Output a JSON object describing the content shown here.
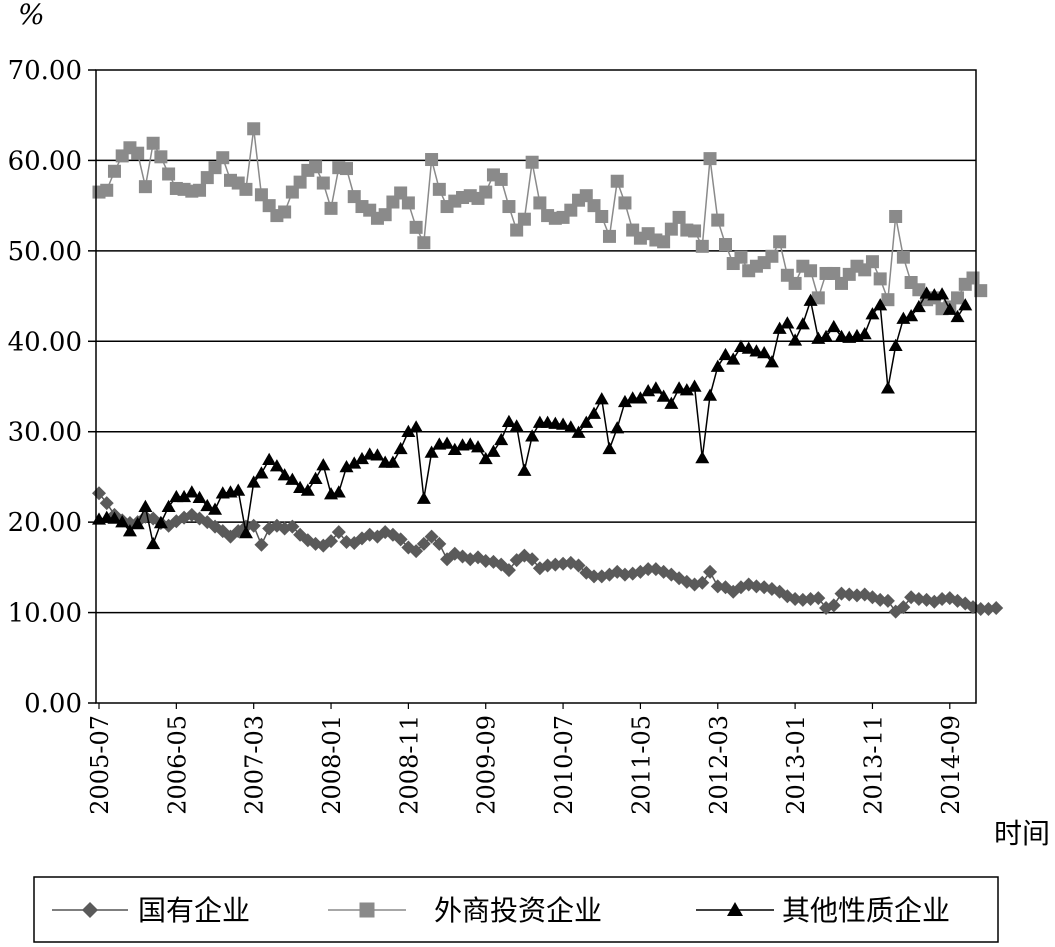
{
  "chart_data": {
    "type": "line",
    "ylabel": "%",
    "xlabel": "时间",
    "ylim": [
      0,
      70
    ],
    "y_ticks": [
      "0.00",
      "10.00",
      "20.00",
      "30.00",
      "40.00",
      "50.00",
      "60.00",
      "70.00"
    ],
    "x_tick_labels": [
      "2005-07",
      "2006-05",
      "2007-03",
      "2008-01",
      "2008-11",
      "2009-09",
      "2010-07",
      "2011-05",
      "2012-03",
      "2013-01",
      "2013-11",
      "2014-09"
    ],
    "x_start": "2005-07",
    "x_end": "2014-12",
    "grid": "horizontal",
    "legend_position": "bottom",
    "series": [
      {
        "name": "国有企业",
        "marker": "diamond",
        "color": "#555555",
        "marker_color": "#5a5a5a",
        "values": [
          23.2,
          22.1,
          20.8,
          20.2,
          19.9,
          20.0,
          20.6,
          20.4,
          19.9,
          19.6,
          20.1,
          20.5,
          20.8,
          20.4,
          20.0,
          19.5,
          19.0,
          18.4,
          19.0,
          19.5,
          19.6,
          17.5,
          19.3,
          19.6,
          19.3,
          19.5,
          18.6,
          18.0,
          17.6,
          17.4,
          17.9,
          18.9,
          17.8,
          17.7,
          18.2,
          18.6,
          18.4,
          18.9,
          18.6,
          18.1,
          17.2,
          16.8,
          17.6,
          18.4,
          17.6,
          15.9,
          16.5,
          16.2,
          15.9,
          16.1,
          15.7,
          15.6,
          15.3,
          14.7,
          15.8,
          16.3,
          15.9,
          14.9,
          15.2,
          15.3,
          15.4,
          15.5,
          15.2,
          14.4,
          14.0,
          14.0,
          14.2,
          14.5,
          14.2,
          14.3,
          14.5,
          14.8,
          14.8,
          14.5,
          14.2,
          13.8,
          13.4,
          13.1,
          13.3,
          14.5,
          12.9,
          12.8,
          12.3,
          12.8,
          13.1,
          12.9,
          12.8,
          12.6,
          12.3,
          11.8,
          11.5,
          11.4,
          11.5,
          11.6,
          10.5,
          10.8,
          12.1,
          12.0,
          11.9,
          12.0,
          11.7,
          11.4,
          11.3,
          10.1,
          10.6,
          11.7,
          11.5,
          11.4,
          11.2,
          11.5,
          11.6,
          11.3,
          11.0,
          10.6,
          10.4,
          10.4,
          10.5
        ]
      },
      {
        "name": "外商投资企业",
        "marker": "square",
        "color": "#8a8a8a",
        "marker_color": "#8a8a8a",
        "values": [
          56.5,
          56.7,
          58.8,
          60.5,
          61.4,
          60.8,
          57.1,
          61.9,
          60.4,
          58.5,
          56.9,
          56.8,
          56.6,
          56.7,
          58.1,
          59.2,
          60.3,
          57.8,
          57.5,
          56.8,
          63.5,
          56.2,
          55.0,
          53.9,
          54.3,
          56.5,
          57.6,
          58.9,
          59.3,
          57.5,
          54.7,
          59.2,
          59.1,
          56.0,
          54.9,
          54.5,
          53.6,
          54.0,
          55.4,
          56.4,
          55.3,
          52.6,
          50.9,
          60.1,
          56.8,
          54.9,
          55.5,
          55.9,
          56.1,
          55.8,
          56.5,
          58.4,
          57.9,
          54.9,
          52.3,
          53.5,
          59.8,
          55.3,
          53.9,
          53.6,
          53.7,
          54.5,
          55.6,
          56.1,
          55.0,
          53.8,
          51.6,
          57.7,
          55.3,
          52.3,
          51.4,
          51.9,
          51.2,
          51.0,
          52.4,
          53.7,
          52.3,
          52.2,
          50.5,
          60.2,
          53.4,
          50.7,
          48.6,
          49.3,
          47.8,
          48.3,
          48.7,
          49.4,
          51.0,
          47.3,
          46.4,
          48.3,
          47.8,
          44.8,
          47.5,
          47.5,
          46.4,
          47.4,
          48.3,
          47.9,
          48.8,
          46.9,
          44.6,
          53.8,
          49.3,
          46.5,
          45.7,
          44.6,
          44.8,
          43.6,
          43.8,
          44.8,
          46.3,
          47.0,
          45.6
        ]
      },
      {
        "name": "其他性质企业",
        "marker": "triangle",
        "color": "#000000",
        "marker_color": "#000000",
        "values": [
          20.3,
          20.5,
          20.4,
          20.0,
          19.0,
          19.8,
          21.7,
          17.6,
          19.9,
          21.7,
          22.8,
          22.8,
          23.3,
          22.7,
          21.8,
          21.4,
          23.2,
          23.3,
          23.5,
          18.8,
          24.4,
          25.4,
          26.9,
          26.2,
          25.2,
          24.7,
          23.8,
          23.5,
          24.8,
          26.3,
          23.1,
          23.3,
          26.1,
          26.5,
          27.0,
          27.5,
          27.4,
          26.6,
          26.6,
          28.1,
          30.0,
          30.5,
          22.6,
          27.7,
          28.6,
          28.7,
          28.0,
          28.5,
          28.6,
          28.3,
          27.0,
          27.8,
          29.1,
          31.1,
          30.6,
          25.7,
          29.5,
          31.0,
          31.0,
          30.9,
          30.8,
          30.5,
          29.9,
          31.0,
          32.0,
          33.6,
          28.1,
          30.4,
          33.3,
          33.7,
          33.7,
          34.5,
          34.8,
          33.9,
          33.1,
          34.8,
          34.6,
          35.0,
          27.1,
          34.0,
          37.2,
          38.5,
          38.0,
          39.4,
          39.2,
          38.9,
          38.7,
          37.7,
          41.4,
          42.0,
          40.1,
          41.9,
          44.5,
          40.3,
          40.5,
          41.6,
          40.5,
          40.4,
          40.6,
          40.8,
          43.0,
          44.0,
          34.8,
          39.5,
          42.5,
          42.8,
          43.8,
          45.3,
          45.1,
          45.2,
          43.5,
          42.7,
          44.0
        ]
      }
    ]
  }
}
